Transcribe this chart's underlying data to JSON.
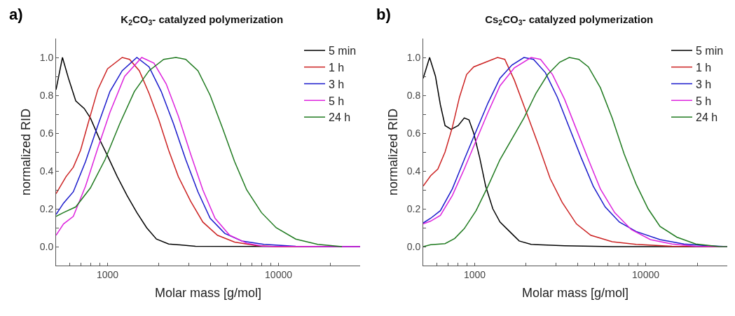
{
  "chart_data": [
    {
      "type": "line",
      "title": "K$_{2}$CO$_{3}$- catalyzed polymerization",
      "xlabel": "Molar mass [g/mol]",
      "ylabel": "normalized RID",
      "annotations": [
        "a)"
      ],
      "log": "x",
      "grid": false,
      "legend": "top right",
      "marker": "none",
      "line_style": "solid",
      "xlim": [
        500,
        30000
      ],
      "xticks": [
        {
          "value": 600,
          "label": null
        },
        {
          "value": 700,
          "label": null
        },
        {
          "value": 800,
          "label": null
        },
        {
          "value": 900,
          "label": null
        },
        {
          "value": 1000,
          "label": "1000"
        },
        {
          "value": 2000,
          "label": null
        },
        {
          "value": 3000,
          "label": null
        },
        {
          "value": 4000,
          "label": null
        },
        {
          "value": 5000,
          "label": null
        },
        {
          "value": 6000,
          "label": null
        },
        {
          "value": 7000,
          "label": null
        },
        {
          "value": 8000,
          "label": null
        },
        {
          "value": 9000,
          "label": null
        },
        {
          "value": 10000,
          "label": "10000"
        },
        {
          "value": 20000,
          "label": null
        }
      ],
      "ylim": [
        -0.1,
        1.1
      ],
      "yticks": [
        {
          "value": -0.1,
          "label": null
        },
        {
          "value": 0,
          "label": "0.0"
        },
        {
          "value": 0.1,
          "label": null
        },
        {
          "value": 0.2,
          "label": "0.2"
        },
        {
          "value": 0.3,
          "label": null
        },
        {
          "value": 0.4,
          "label": "0.4"
        },
        {
          "value": 0.5,
          "label": null
        },
        {
          "value": 0.6,
          "label": "0.6"
        },
        {
          "value": 0.7,
          "label": null
        },
        {
          "value": 0.8,
          "label": "0.8"
        },
        {
          "value": 0.9,
          "label": null
        },
        {
          "value": 1.0,
          "label": "1.0"
        }
      ],
      "series": [
        {
          "name": "5 min",
          "color": "#000000",
          "x": [
            500,
            545,
            591,
            652,
            731,
            794,
            906,
            1000,
            1140,
            1301,
            1484,
            1693,
            1931,
            2276,
            3270,
            30000
          ],
          "values": [
            0.83,
            1.0,
            0.89,
            0.77,
            0.73,
            0.68,
            0.56,
            0.48,
            0.37,
            0.27,
            0.18,
            0.1,
            0.04,
            0.014,
            0.002,
            0
          ]
        },
        {
          "name": "1 h",
          "color": "#cc2222",
          "x": [
            500,
            572,
            631,
            696,
            769,
            877,
            1000,
            1218,
            1345,
            1534,
            1749,
            1995,
            2276,
            2595,
            3060,
            3608,
            4394,
            5531,
            7431,
            9680,
            30000
          ],
          "values": [
            0.28,
            0.37,
            0.42,
            0.51,
            0.65,
            0.83,
            0.94,
            1.0,
            0.99,
            0.93,
            0.81,
            0.67,
            0.51,
            0.37,
            0.24,
            0.13,
            0.06,
            0.024,
            0.006,
            0,
            0
          ]
        },
        {
          "name": "3 h",
          "color": "#1a1acc",
          "x": [
            500,
            553,
            631,
            744,
            877,
            1033,
            1218,
            1484,
            1749,
            2061,
            2430,
            2866,
            3378,
            3981,
            4850,
            6106,
            8204,
            12600,
            30000
          ],
          "values": [
            0.17,
            0.23,
            0.29,
            0.45,
            0.64,
            0.82,
            0.93,
            1.0,
            0.95,
            0.82,
            0.65,
            0.46,
            0.29,
            0.15,
            0.07,
            0.03,
            0.012,
            0.002,
            0
          ]
        },
        {
          "name": "5 h",
          "color": "#dd22dd",
          "x": [
            500,
            553,
            631,
            744,
            877,
            1033,
            1259,
            1585,
            1868,
            2203,
            2595,
            3060,
            3608,
            4252,
            5179,
            6512,
            8204,
            30000
          ],
          "values": [
            0.06,
            0.12,
            0.16,
            0.32,
            0.52,
            0.71,
            0.9,
            1.0,
            0.97,
            0.86,
            0.69,
            0.49,
            0.3,
            0.15,
            0.06,
            0.018,
            0.002,
            0
          ]
        },
        {
          "name": "24 h",
          "color": "#1f7a1f",
          "x": [
            500,
            553,
            652,
            794,
            967,
            1179,
            1435,
            1749,
            2131,
            2512,
            2866,
            3378,
            3981,
            4690,
            5531,
            6512,
            7943,
            9680,
            12600,
            16940,
            23500
          ],
          "values": [
            0.16,
            0.18,
            0.21,
            0.31,
            0.46,
            0.65,
            0.82,
            0.93,
            0.99,
            1.0,
            0.99,
            0.93,
            0.8,
            0.63,
            0.45,
            0.3,
            0.18,
            0.1,
            0.04,
            0.012,
            0
          ]
        }
      ]
    },
    {
      "type": "line",
      "title": "Cs$_{2}$CO$_{3}$- catalyzed polymerization",
      "xlabel": "Molar mass [g/mol]",
      "ylabel": "normalized RID",
      "annotations": [
        "b)"
      ],
      "log": "x",
      "grid": false,
      "legend": "top right",
      "marker": "none",
      "line_style": "solid",
      "xlim": [
        500,
        30000
      ],
      "xticks": [
        {
          "value": 600,
          "label": null
        },
        {
          "value": 700,
          "label": null
        },
        {
          "value": 800,
          "label": null
        },
        {
          "value": 900,
          "label": null
        },
        {
          "value": 1000,
          "label": "1000"
        },
        {
          "value": 2000,
          "label": null
        },
        {
          "value": 3000,
          "label": null
        },
        {
          "value": 4000,
          "label": null
        },
        {
          "value": 5000,
          "label": null
        },
        {
          "value": 6000,
          "label": null
        },
        {
          "value": 7000,
          "label": null
        },
        {
          "value": 8000,
          "label": null
        },
        {
          "value": 9000,
          "label": null
        },
        {
          "value": 10000,
          "label": "10000"
        },
        {
          "value": 20000,
          "label": null
        }
      ],
      "ylim": [
        -0.1,
        1.1
      ],
      "yticks": [
        {
          "value": -0.1,
          "label": null
        },
        {
          "value": 0,
          "label": "0.0"
        },
        {
          "value": 0.1,
          "label": null
        },
        {
          "value": 0.2,
          "label": "0.2"
        },
        {
          "value": 0.3,
          "label": null
        },
        {
          "value": 0.4,
          "label": "0.4"
        },
        {
          "value": 0.5,
          "label": null
        },
        {
          "value": 0.6,
          "label": "0.6"
        },
        {
          "value": 0.7,
          "label": null
        },
        {
          "value": 0.8,
          "label": "0.8"
        },
        {
          "value": 0.9,
          "label": null
        },
        {
          "value": 1.0,
          "label": "1.0"
        }
      ],
      "series": [
        {
          "name": "5 min",
          "color": "#000000",
          "x": [
            500,
            545,
            590,
            630,
            671,
            728,
            801,
            869,
            926,
            987,
            1070,
            1159,
            1277,
            1406,
            1600,
            1820,
            2138,
            3350,
            6370,
            30000
          ],
          "values": [
            0.89,
            1.0,
            0.9,
            0.75,
            0.64,
            0.62,
            0.64,
            0.68,
            0.67,
            0.6,
            0.47,
            0.32,
            0.2,
            0.13,
            0.08,
            0.03,
            0.012,
            0.005,
            0,
            0
          ]
        },
        {
          "name": "1 h",
          "color": "#cc2222",
          "x": [
            500,
            553,
            609,
            671,
            740,
            815,
            897,
            987,
            1159,
            1361,
            1500,
            1706,
            2005,
            2353,
            2763,
            3245,
            3935,
            4773,
            6370,
            8790,
            14260,
            30000
          ],
          "values": [
            0.32,
            0.375,
            0.41,
            0.5,
            0.63,
            0.79,
            0.91,
            0.95,
            0.975,
            1.0,
            0.99,
            0.88,
            0.71,
            0.54,
            0.36,
            0.235,
            0.12,
            0.06,
            0.026,
            0.012,
            0.002,
            0
          ]
        },
        {
          "name": "3 h",
          "color": "#1a1acc",
          "x": [
            500,
            553,
            630,
            740,
            869,
            1019,
            1197,
            1406,
            1652,
            1941,
            2208,
            2590,
            3043,
            3573,
            4198,
            4932,
            5793,
            7020,
            8790,
            12130,
            16710,
            23070,
            30000
          ],
          "values": [
            0.125,
            0.15,
            0.19,
            0.305,
            0.46,
            0.61,
            0.76,
            0.89,
            0.96,
            1.0,
            0.99,
            0.92,
            0.79,
            0.63,
            0.47,
            0.32,
            0.21,
            0.13,
            0.08,
            0.037,
            0.014,
            0.005,
            0
          ]
        },
        {
          "name": "5 h",
          "color": "#dd22dd",
          "x": [
            500,
            553,
            630,
            740,
            869,
            1019,
            1197,
            1406,
            1706,
            2138,
            2427,
            2851,
            3350,
            3935,
            4623,
            5432,
            6580,
            8240,
            10660,
            14260,
            19630,
            30000
          ],
          "values": [
            0.12,
            0.135,
            0.165,
            0.27,
            0.41,
            0.56,
            0.71,
            0.85,
            0.945,
            1.0,
            0.99,
            0.91,
            0.78,
            0.62,
            0.46,
            0.305,
            0.18,
            0.09,
            0.037,
            0.014,
            0.002,
            0
          ]
        },
        {
          "name": "24 h",
          "color": "#1f7a1f",
          "x": [
            500,
            553,
            671,
            764,
            869,
            1019,
            1197,
            1406,
            1652,
            1941,
            2281,
            2674,
            3141,
            3573,
            4064,
            4623,
            5432,
            6370,
            7482,
            8790,
            10330,
            12130,
            15210,
            19630,
            27100,
            30000
          ],
          "values": [
            0,
            0.01,
            0.016,
            0.043,
            0.095,
            0.19,
            0.32,
            0.46,
            0.57,
            0.68,
            0.81,
            0.91,
            0.975,
            1.0,
            0.99,
            0.95,
            0.84,
            0.68,
            0.49,
            0.33,
            0.2,
            0.107,
            0.05,
            0.014,
            0,
            0
          ]
        }
      ]
    }
  ]
}
